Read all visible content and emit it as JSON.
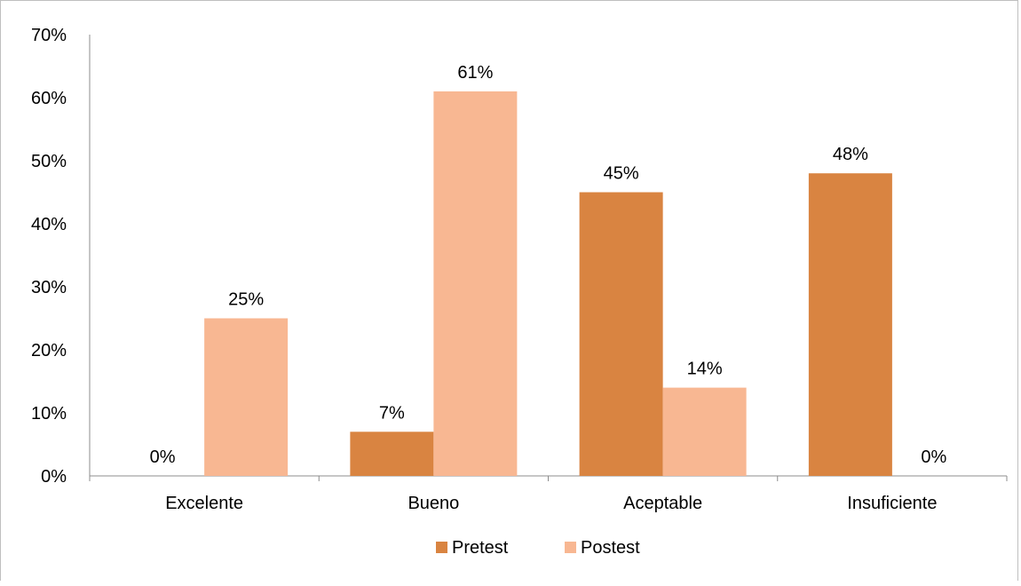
{
  "chart_data": {
    "type": "bar",
    "title": "",
    "xlabel": "",
    "ylabel": "",
    "categories": [
      "Excelente",
      "Bueno",
      "Aceptable",
      "Insuficiente"
    ],
    "series": [
      {
        "name": "Pretest",
        "values": [
          0,
          7,
          45,
          48
        ],
        "labels": [
          "0%",
          "7%",
          "45%",
          "48%"
        ],
        "color": "#d98441"
      },
      {
        "name": "Postest",
        "values": [
          25,
          61,
          14,
          0
        ],
        "labels": [
          "25%",
          "61%",
          "14%",
          "0%"
        ],
        "color": "#f8b792"
      }
    ],
    "ylim": [
      0,
      70
    ],
    "yticks": [
      0,
      10,
      20,
      30,
      40,
      50,
      60,
      70
    ],
    "ytick_labels": [
      "0%",
      "10%",
      "20%",
      "30%",
      "40%",
      "50%",
      "60%",
      "70%"
    ],
    "grid": false,
    "legend_position": "bottom"
  }
}
